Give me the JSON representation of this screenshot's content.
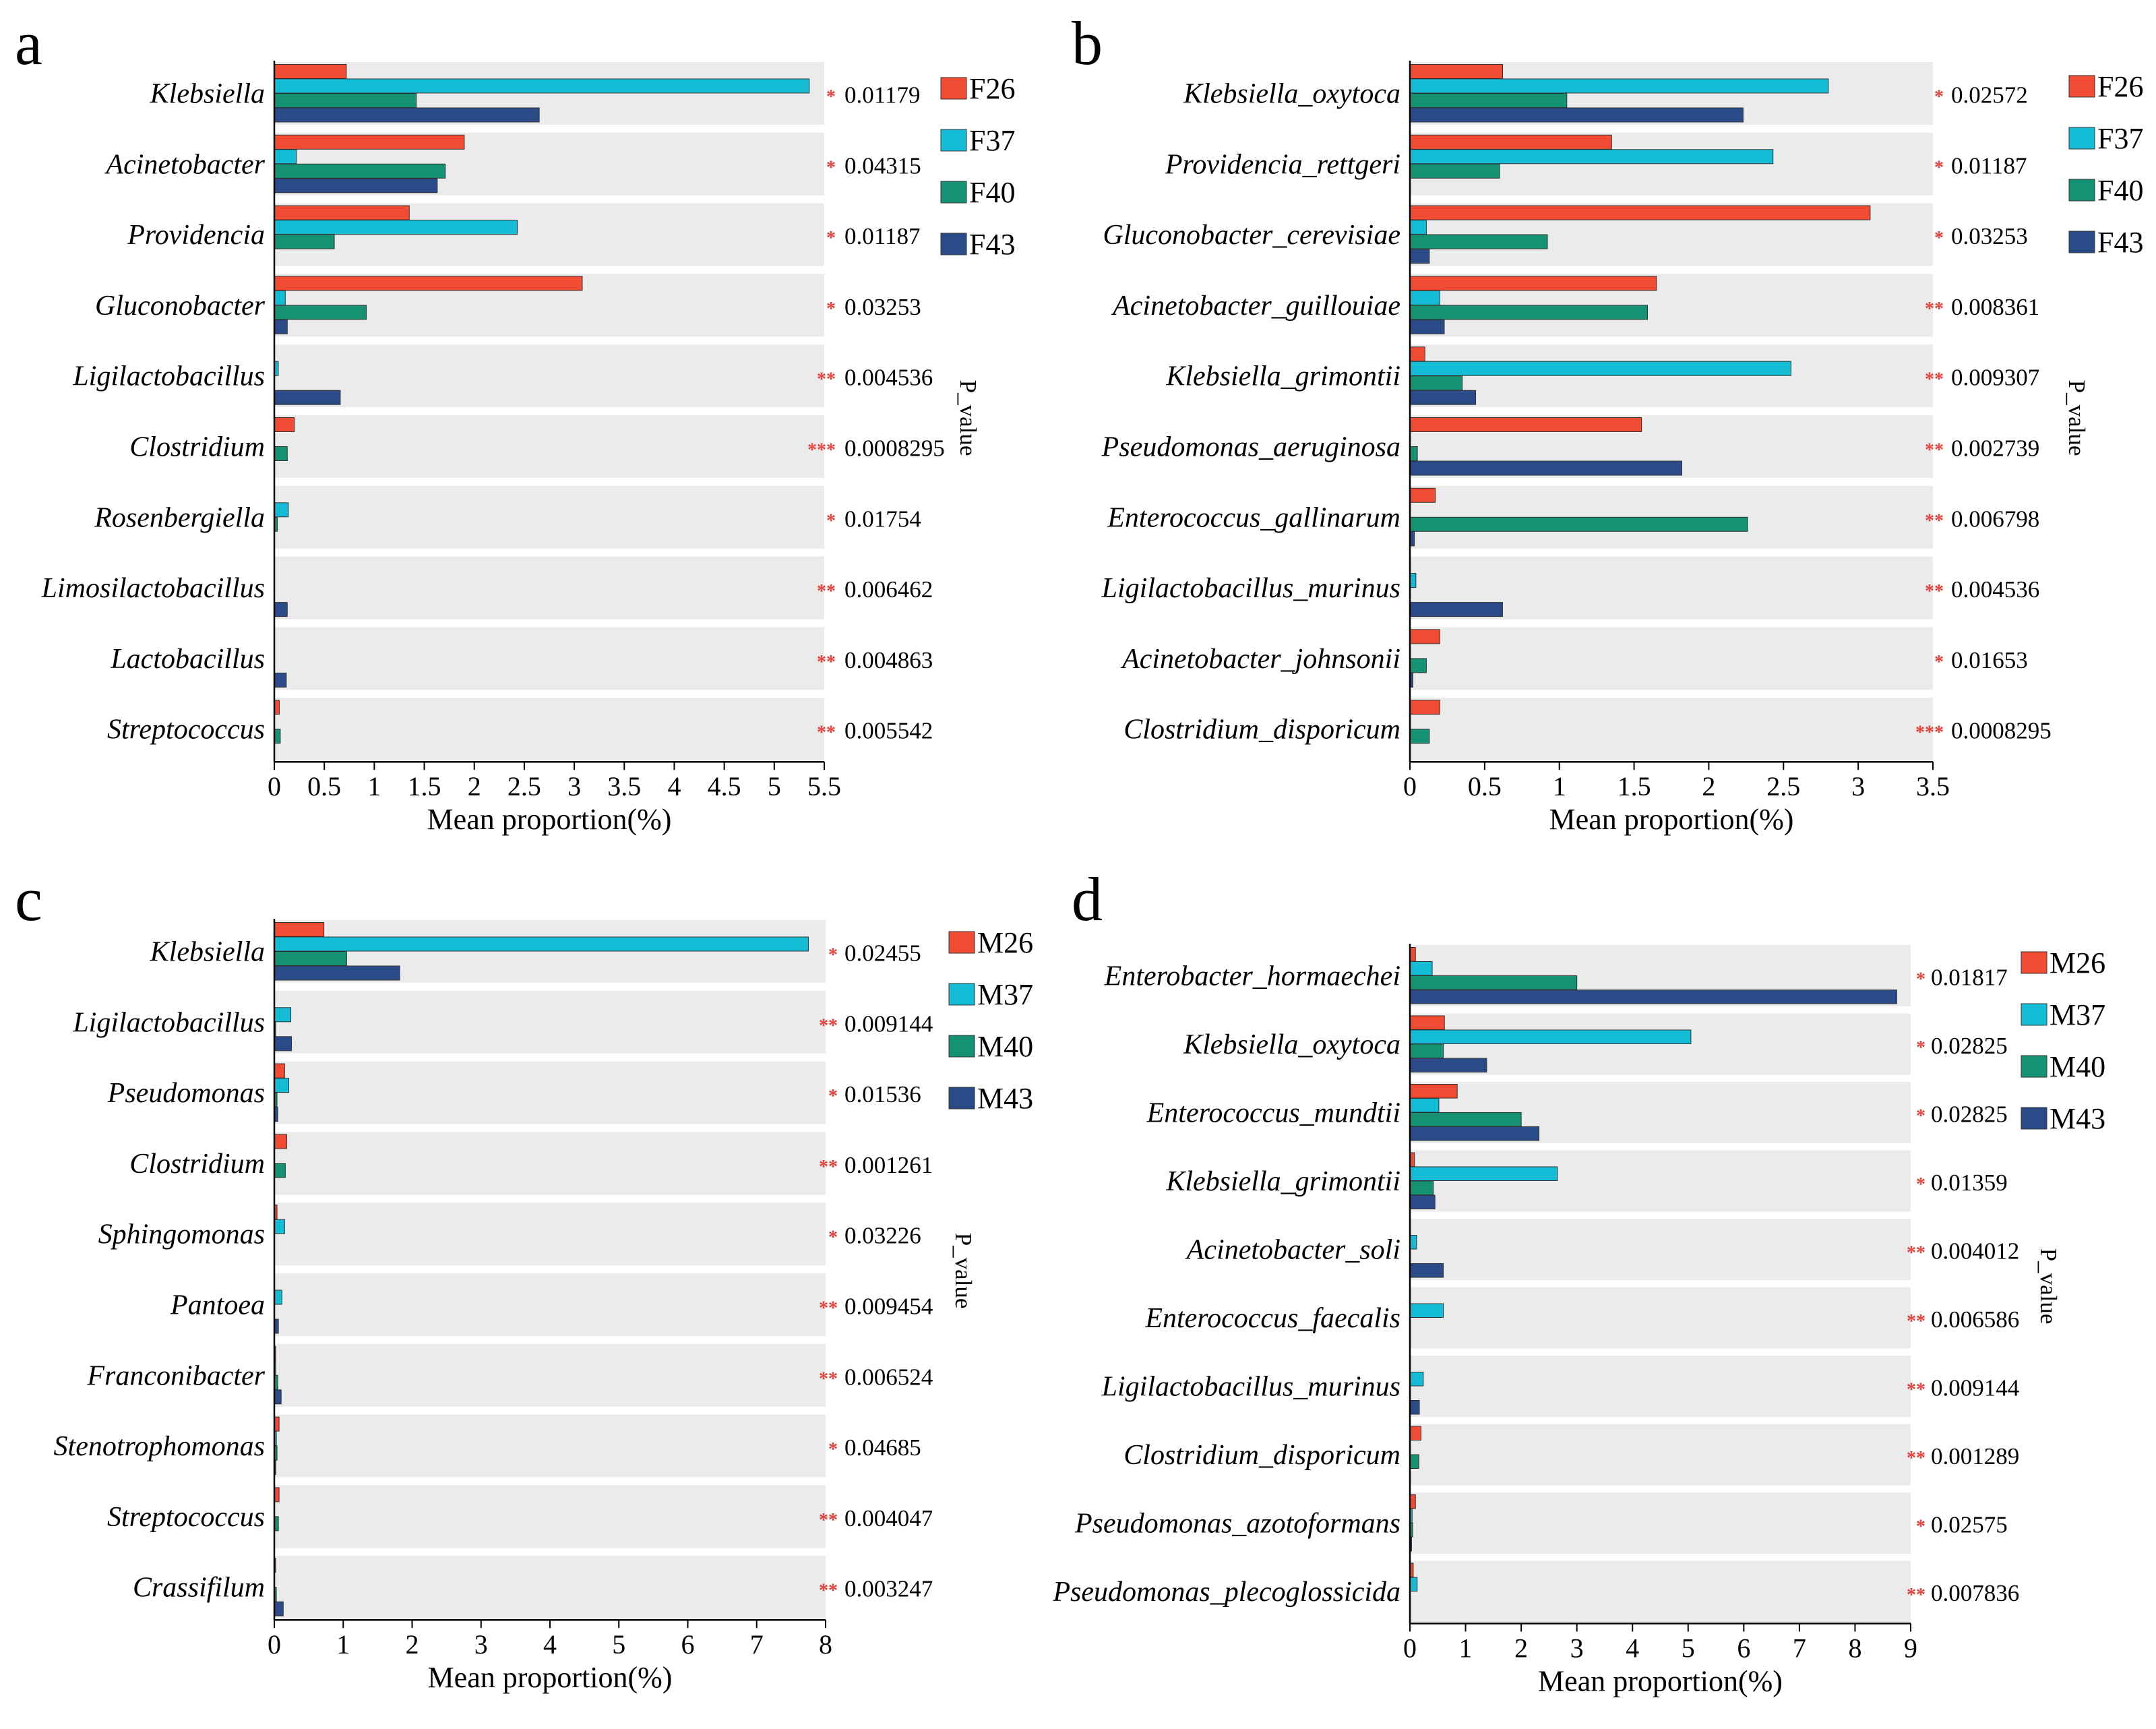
{
  "colors": {
    "s26": "#f24b33",
    "s37": "#14bdd5",
    "s40": "#149273",
    "s43": "#2b4b88",
    "band": "#ebebeb",
    "stars": "#e8413a"
  },
  "pvalue_label": "P_value",
  "chart_data": [
    {
      "type": "bar",
      "orientation": "horizontal",
      "panel": "a",
      "xlabel": "Mean proportion(%)",
      "xlim": [
        0,
        5.5
      ],
      "xticks": [
        "0",
        "0.5",
        "1",
        "1.5",
        "2",
        "2.5",
        "3",
        "3.5",
        "4",
        "4.5",
        "5",
        "5.5"
      ],
      "categories": [
        "Klebsiella",
        "Acinetobacter",
        "Providencia",
        "Gluconobacter",
        "Ligilactobacillus",
        "Clostridium",
        "Rosenbergiella",
        "Limosilactobacillus",
        "Lactobacillus",
        "Streptococcus"
      ],
      "series": [
        {
          "name": "F26",
          "values": [
            0.72,
            1.9,
            1.35,
            3.08,
            0.0,
            0.2,
            0.0,
            0.0,
            0.0,
            0.05
          ]
        },
        {
          "name": "F37",
          "values": [
            5.35,
            0.22,
            2.43,
            0.11,
            0.04,
            0.0,
            0.14,
            0.0,
            0.0,
            0.0
          ]
        },
        {
          "name": "F40",
          "values": [
            1.42,
            1.71,
            0.6,
            0.92,
            0.0,
            0.13,
            0.03,
            0.0,
            0.0,
            0.06
          ]
        },
        {
          "name": "F43",
          "values": [
            2.65,
            1.63,
            0.0,
            0.13,
            0.66,
            0.0,
            0.0,
            0.13,
            0.12,
            0.0
          ]
        }
      ],
      "pvalues": [
        "0.01179",
        "0.04315",
        "0.01187",
        "0.03253",
        "0.004536",
        "0.0008295",
        "0.01754",
        "0.006462",
        "0.004863",
        "0.005542"
      ],
      "stars": [
        "*",
        "*",
        "*",
        "*",
        "**",
        "***",
        "*",
        "**",
        "**",
        "**"
      ]
    },
    {
      "type": "bar",
      "orientation": "horizontal",
      "panel": "b",
      "xlabel": "Mean proportion(%)",
      "xlim": [
        0,
        3.5
      ],
      "xticks": [
        "0",
        "0.5",
        "1",
        "1.5",
        "2",
        "2.5",
        "3",
        "3.5"
      ],
      "categories": [
        "Klebsiella_oxytoca",
        "Providencia_rettgeri",
        "Gluconobacter_cerevisiae",
        "Acinetobacter_guillouiae",
        "Klebsiella_grimontii",
        "Pseudomonas_aeruginosa",
        "Enterococcus_gallinarum",
        "Ligilactobacillus_murinus",
        "Acinetobacter_johnsonii",
        "Clostridium_disporicum"
      ],
      "series": [
        {
          "name": "F26",
          "values": [
            0.62,
            1.35,
            3.08,
            1.65,
            0.1,
            1.55,
            0.17,
            0.0,
            0.2,
            0.2
          ]
        },
        {
          "name": "F37",
          "values": [
            2.8,
            2.43,
            0.11,
            0.2,
            2.55,
            0.0,
            0.0,
            0.04,
            0.0,
            0.0
          ]
        },
        {
          "name": "F40",
          "values": [
            1.05,
            0.6,
            0.92,
            1.59,
            0.35,
            0.05,
            2.26,
            0.0,
            0.11,
            0.13
          ]
        },
        {
          "name": "F43",
          "values": [
            2.23,
            0.0,
            0.13,
            0.23,
            0.44,
            1.82,
            0.03,
            0.62,
            0.02,
            0.0
          ]
        }
      ],
      "pvalues": [
        "0.02572",
        "0.01187",
        "0.03253",
        "0.008361",
        "0.009307",
        "0.002739",
        "0.006798",
        "0.004536",
        "0.01653",
        "0.0008295"
      ],
      "stars": [
        "*",
        "*",
        "*",
        "**",
        "**",
        "**",
        "**",
        "**",
        "*",
        "***"
      ]
    },
    {
      "type": "bar",
      "orientation": "horizontal",
      "panel": "c",
      "xlabel": "Mean proportion(%)",
      "xlim": [
        0,
        8
      ],
      "xticks": [
        "0",
        "1",
        "2",
        "3",
        "4",
        "5",
        "6",
        "7",
        "8"
      ],
      "categories": [
        "Klebsiella",
        "Ligilactobacillus",
        "Pseudomonas",
        "Clostridium",
        "Sphingomonas",
        "Pantoea",
        "Franconibacter",
        "Stenotrophomonas",
        "Streptococcus",
        "Crassifilum"
      ],
      "series": [
        {
          "name": "M26",
          "values": [
            0.72,
            0.0,
            0.15,
            0.18,
            0.04,
            0.0,
            0.02,
            0.07,
            0.07,
            0.02
          ]
        },
        {
          "name": "M37",
          "values": [
            7.75,
            0.24,
            0.21,
            0.0,
            0.15,
            0.11,
            0.02,
            0.03,
            0.0,
            0.0
          ]
        },
        {
          "name": "M40",
          "values": [
            1.05,
            0.02,
            0.04,
            0.16,
            0.0,
            0.0,
            0.05,
            0.04,
            0.06,
            0.03
          ]
        },
        {
          "name": "M43",
          "values": [
            1.82,
            0.25,
            0.05,
            0.0,
            0.0,
            0.06,
            0.1,
            0.02,
            0.0,
            0.13
          ]
        }
      ],
      "pvalues": [
        "0.02455",
        "0.009144",
        "0.01536",
        "0.001261",
        "0.03226",
        "0.009454",
        "0.006524",
        "0.04685",
        "0.004047",
        "0.003247"
      ],
      "stars": [
        "*",
        "**",
        "*",
        "**",
        "*",
        "**",
        "**",
        "*",
        "**",
        "**"
      ]
    },
    {
      "type": "bar",
      "orientation": "horizontal",
      "panel": "d",
      "xlabel": "Mean proportion(%)",
      "xlim": [
        0,
        9
      ],
      "xticks": [
        "0",
        "1",
        "2",
        "3",
        "4",
        "5",
        "6",
        "7",
        "8",
        "9"
      ],
      "categories": [
        "Enterobacter_hormaechei",
        "Klebsiella_oxytoca",
        "Enterococcus_mundtii",
        "Klebsiella_grimontii",
        "Acinetobacter_soli",
        "Enterococcus_faecalis",
        "Ligilactobacillus_murinus",
        "Clostridium_disporicum",
        "Pseudomonas_azotoformans",
        "Pseudomonas_plecoglossicida"
      ],
      "series": [
        {
          "name": "M26",
          "values": [
            0.1,
            0.62,
            0.85,
            0.08,
            0.0,
            0.0,
            0.0,
            0.2,
            0.1,
            0.06
          ]
        },
        {
          "name": "M37",
          "values": [
            0.4,
            5.05,
            0.52,
            2.65,
            0.12,
            0.6,
            0.24,
            0.0,
            0.04,
            0.13
          ]
        },
        {
          "name": "M40",
          "values": [
            3.0,
            0.6,
            2.0,
            0.42,
            0.0,
            0.0,
            0.0,
            0.16,
            0.05,
            0.0
          ]
        },
        {
          "name": "M43",
          "values": [
            8.75,
            1.38,
            2.32,
            0.45,
            0.6,
            0.0,
            0.17,
            0.0,
            0.03,
            0.0
          ]
        }
      ],
      "pvalues": [
        "0.01817",
        "0.02825",
        "0.02825",
        "0.01359",
        "0.004012",
        "0.006586",
        "0.009144",
        "0.001289",
        "0.02575",
        "0.007836"
      ],
      "stars": [
        "*",
        "*",
        "*",
        "*",
        "**",
        "**",
        "**",
        "**",
        "*",
        "**"
      ]
    }
  ]
}
